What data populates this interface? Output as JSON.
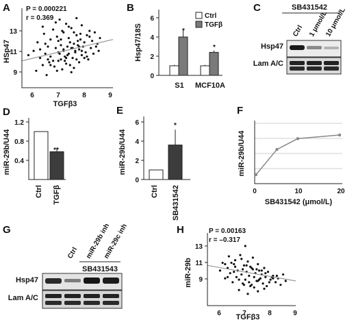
{
  "panels": {
    "A": {
      "letter": "A",
      "stat_p": "P = 0.000221",
      "stat_r": "r = 0.369",
      "xlabel": "TGFβ3",
      "ylabel": "HSp47",
      "xticks": [
        "6",
        "7",
        "8",
        "9"
      ],
      "yticks": [
        "9",
        "11",
        "13"
      ],
      "point_color": "#111111",
      "line_color": "#9a9a9a"
    },
    "B": {
      "letter": "B",
      "ylabel": "Hsp47/18S",
      "yticks": [
        "0",
        "2",
        "4",
        "6"
      ],
      "xticks": [
        "S1",
        "MCF10A"
      ],
      "legend": [
        "Ctrl",
        "TGFβ"
      ],
      "sig": [
        "*",
        "*"
      ],
      "colors": {
        "ctrl": "#ffffff",
        "tgfb": "#7a7a7a"
      }
    },
    "C": {
      "letter": "C",
      "treatment": "SB431542",
      "lanes": [
        "Ctrl",
        "1 μmol/L",
        "10 μmol/L"
      ],
      "rows": [
        "Hsp47",
        "Lam A/C"
      ]
    },
    "D": {
      "letter": "D",
      "ylabel": "miR-29b/U44",
      "yticks": [
        "0.4",
        "0.8",
        "1.2"
      ],
      "xticks": [
        "Ctrl",
        "TGFβ"
      ],
      "sig": "**",
      "colors": {
        "ctrl": "#ffffff",
        "treat": "#3c3c3c"
      }
    },
    "E": {
      "letter": "E",
      "ylabel": "miR-29b/U44",
      "yticks": [
        "0",
        "2",
        "4",
        "6"
      ],
      "xticks": [
        "Ctrl",
        "SB431542"
      ],
      "sig": "*",
      "colors": {
        "ctrl": "#ffffff",
        "treat": "#3c3c3c"
      }
    },
    "F": {
      "letter": "F",
      "ylabel": "miR-29b/U44",
      "xlabel": "SB431542 (μmol/L)",
      "xticks": [
        "0",
        "10",
        "20"
      ],
      "color": "#888888"
    },
    "G": {
      "letter": "G",
      "treatment": "SB431543",
      "lanes": [
        "Ctrl",
        "miR-29b inh",
        "miR-29c inh"
      ],
      "rows": [
        "Hsp47",
        "Lam A/C"
      ]
    },
    "H": {
      "letter": "H",
      "stat_p": "P = 0.00163",
      "stat_r": "r = –0.317",
      "xlabel": "TGFβ3",
      "ylabel": "miR-29b",
      "xticks": [
        "6",
        "7",
        "8",
        "9"
      ],
      "yticks": [
        "9",
        "11",
        "13"
      ],
      "point_color": "#111111",
      "line_color": "#9a9a9a"
    }
  },
  "chart_data": [
    {
      "panel": "A",
      "type": "scatter",
      "xlabel": "TGFβ3",
      "ylabel": "HSp47",
      "xlim": [
        5.5,
        9
      ],
      "ylim": [
        8.3,
        13.5
      ],
      "trend": {
        "x": [
          5.5,
          9.0
        ],
        "y": [
          9.9,
          11.4
        ]
      },
      "x": [
        5.75,
        5.95,
        6.05,
        6.1,
        6.2,
        6.3,
        6.35,
        6.4,
        6.45,
        6.5,
        6.55,
        6.6,
        6.6,
        6.7,
        6.75,
        6.8,
        6.85,
        6.9,
        6.9,
        6.95,
        7.0,
        7.0,
        7.05,
        7.1,
        7.1,
        7.15,
        7.2,
        7.2,
        7.25,
        7.3,
        7.3,
        7.35,
        7.4,
        7.4,
        7.45,
        7.5,
        7.5,
        7.55,
        7.6,
        7.6,
        7.65,
        7.7,
        7.7,
        7.75,
        7.8,
        7.8,
        7.85,
        7.9,
        7.95,
        8.0,
        8.05,
        8.1,
        8.15,
        8.2,
        8.25,
        8.3,
        8.35,
        8.4,
        8.45,
        8.5,
        6.2,
        6.4,
        6.6,
        6.8,
        7.0,
        7.2,
        7.4,
        7.6,
        7.8,
        8.0,
        6.5,
        6.9,
        7.3,
        7.7,
        8.1,
        6.3,
        6.7,
        7.1,
        7.5,
        7.9,
        6.85,
        7.05,
        7.25,
        7.45,
        7.65,
        6.95,
        7.15,
        7.35,
        7.55,
        7.75
      ],
      "y": [
        10.3,
        10.6,
        9.2,
        11.2,
        10.1,
        9.6,
        11.8,
        10.4,
        8.9,
        10.9,
        9.8,
        11.4,
        10.2,
        12.1,
        9.5,
        10.8,
        11.6,
        9.9,
        10.5,
        12.8,
        10.0,
        11.0,
        9.3,
        10.7,
        11.9,
        10.2,
        9.7,
        12.5,
        10.9,
        10.4,
        11.5,
        9.6,
        10.8,
        12.2,
        10.1,
        9.4,
        11.1,
        10.6,
        12.9,
        10.0,
        11.3,
        9.8,
        10.7,
        11.8,
        10.3,
        12.4,
        10.9,
        11.2,
        10.5,
        11.7,
        10.0,
        12.0,
        10.8,
        11.3,
        10.4,
        11.9,
        10.9,
        11.1,
        10.6,
        11.5,
        10.7,
        11.1,
        9.6,
        12.6,
        11.4,
        10.1,
        9.1,
        11.7,
        10.6,
        10.2,
        10.0,
        11.3,
        12.3,
        10.9,
        11.6,
        12.3,
        9.9,
        10.6,
        11.9,
        10.1,
        9.2,
        12.0,
        10.3,
        10.8,
        11.0,
        10.4,
        9.9,
        11.2,
        10.5,
        11.4
      ]
    },
    {
      "panel": "B",
      "type": "bar",
      "categories": [
        "S1",
        "MCF10A"
      ],
      "ylabel": "Hsp47/18S",
      "ylim": [
        0,
        6
      ],
      "series": [
        {
          "name": "Ctrl",
          "values": [
            1.0,
            1.0
          ],
          "errors": [
            0.1,
            0.1
          ]
        },
        {
          "name": "TGFβ",
          "values": [
            4.0,
            2.4
          ],
          "errors": [
            0.7,
            0.2
          ]
        }
      ]
    },
    {
      "panel": "D",
      "type": "bar",
      "categories": [
        "Ctrl",
        "TGFβ"
      ],
      "ylabel": "miR-29b/U44",
      "ylim": [
        0,
        1.2
      ],
      "values": [
        1.0,
        0.58
      ],
      "errors": [
        0,
        0.08
      ]
    },
    {
      "panel": "E",
      "type": "bar",
      "categories": [
        "Ctrl",
        "SB431542"
      ],
      "ylabel": "miR-29b/U44",
      "ylim": [
        0,
        6
      ],
      "values": [
        1.0,
        3.6
      ],
      "errors": [
        0,
        1.6
      ]
    },
    {
      "panel": "F",
      "type": "line",
      "xlabel": "SB431542 (μmol/L)",
      "ylabel": "miR-29b/U44",
      "xlim": [
        0,
        20
      ],
      "ylim": [
        0,
        7
      ],
      "x": [
        0,
        5,
        10,
        20
      ],
      "y": [
        1.0,
        3.8,
        5.0,
        5.4
      ]
    },
    {
      "panel": "H",
      "type": "scatter",
      "xlabel": "TGFβ3",
      "ylabel": "miR-29b",
      "xlim": [
        5.5,
        9
      ],
      "ylim": [
        7.8,
        13.2
      ],
      "trend": {
        "x": [
          5.5,
          9.0
        ],
        "y": [
          10.8,
          9.6
        ]
      },
      "x": [
        6.0,
        6.1,
        6.2,
        6.3,
        6.35,
        6.4,
        6.5,
        6.55,
        6.6,
        6.65,
        6.7,
        6.75,
        6.8,
        6.85,
        6.9,
        6.95,
        7.0,
        7.0,
        7.05,
        7.1,
        7.1,
        7.15,
        7.2,
        7.25,
        7.3,
        7.3,
        7.35,
        7.4,
        7.45,
        7.5,
        7.5,
        7.55,
        7.6,
        7.65,
        7.7,
        7.75,
        7.8,
        7.85,
        7.9,
        8.0,
        8.1,
        8.2,
        8.3,
        8.4,
        8.5,
        8.6,
        6.3,
        6.6,
        6.9,
        7.2,
        7.5,
        7.8,
        8.1,
        6.45,
        6.75,
        7.05,
        7.35,
        7.65,
        7.95,
        6.55,
        6.85,
        7.15,
        7.45,
        7.75,
        8.05,
        6.2,
        6.95,
        7.25,
        7.55,
        8.25
      ],
      "y": [
        10.4,
        11.0,
        9.8,
        10.6,
        11.5,
        10.2,
        9.5,
        10.9,
        11.2,
        9.9,
        10.4,
        8.9,
        11.6,
        10.1,
        9.4,
        10.8,
        12.3,
        9.7,
        10.3,
        11.1,
        8.6,
        10.0,
        10.7,
        9.3,
        11.4,
        10.5,
        9.9,
        10.2,
        9.6,
        10.9,
        8.8,
        10.4,
        9.8,
        10.1,
        9.4,
        10.6,
        9.9,
        9.2,
        10.3,
        9.7,
        10.0,
        9.5,
        9.8,
        9.3,
        10.1,
        9.6,
        9.9,
        10.7,
        10.5,
        9.2,
        9.6,
        10.2,
        9.8,
        11.0,
        9.7,
        10.8,
        9.1,
        10.4,
        9.5,
        10.3,
        11.3,
        9.5,
        10.5,
        9.0,
        9.9,
        10.9,
        9.3,
        10.6,
        9.7,
        10.0
      ]
    }
  ]
}
